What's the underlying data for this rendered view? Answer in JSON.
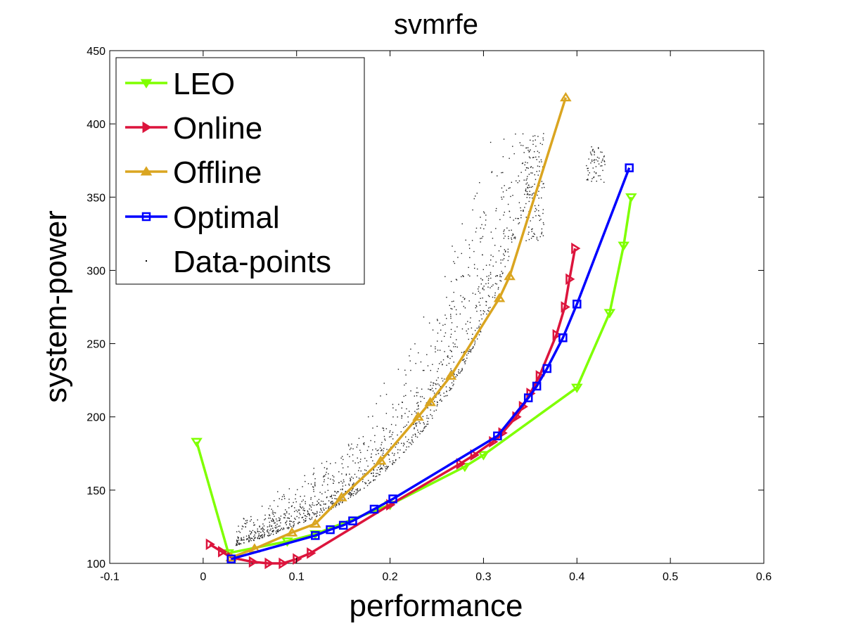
{
  "chart_data": {
    "type": "line",
    "title": "svmrfe",
    "xlabel": "performance",
    "ylabel": "system-power",
    "xlim": [
      -0.1,
      0.6
    ],
    "ylim": [
      100,
      450
    ],
    "xticks": [
      "-0.1",
      "0",
      "0.1",
      "0.2",
      "0.3",
      "0.4",
      "0.5",
      "0.6"
    ],
    "yticks": [
      "100",
      "150",
      "200",
      "250",
      "300",
      "350",
      "400",
      "450"
    ],
    "grid": false,
    "legend_position": "top-left",
    "series": [
      {
        "name": "LEO",
        "color": "#7fff00",
        "marker": "triangle-down",
        "points": [
          [
            -0.007,
            183
          ],
          [
            0.027,
            107
          ],
          [
            0.09,
            115
          ],
          [
            0.12,
            120
          ],
          [
            0.2,
            140
          ],
          [
            0.28,
            166
          ],
          [
            0.3,
            174
          ],
          [
            0.4,
            220
          ],
          [
            0.435,
            271
          ],
          [
            0.45,
            317
          ],
          [
            0.458,
            350
          ]
        ]
      },
      {
        "name": "Online",
        "color": "#dc143c",
        "marker": "triangle-right",
        "points": [
          [
            0.007,
            113
          ],
          [
            0.02,
            108
          ],
          [
            0.03,
            104
          ],
          [
            0.053,
            101
          ],
          [
            0.07,
            100
          ],
          [
            0.085,
            100
          ],
          [
            0.1,
            103
          ],
          [
            0.115,
            107
          ],
          [
            0.2,
            140
          ],
          [
            0.275,
            168
          ],
          [
            0.29,
            174
          ],
          [
            0.31,
            183
          ],
          [
            0.32,
            189
          ],
          [
            0.335,
            200
          ],
          [
            0.342,
            207
          ],
          [
            0.35,
            216
          ],
          [
            0.36,
            228
          ],
          [
            0.378,
            256
          ],
          [
            0.387,
            275
          ],
          [
            0.392,
            294
          ],
          [
            0.398,
            315
          ]
        ]
      },
      {
        "name": "Offline",
        "color": "#daa520",
        "marker": "triangle-up",
        "points": [
          [
            0.03,
            104
          ],
          [
            0.055,
            110
          ],
          [
            0.095,
            121
          ],
          [
            0.12,
            127
          ],
          [
            0.148,
            145
          ],
          [
            0.19,
            170
          ],
          [
            0.23,
            200
          ],
          [
            0.243,
            210
          ],
          [
            0.265,
            228
          ],
          [
            0.317,
            281
          ],
          [
            0.328,
            296
          ],
          [
            0.388,
            418
          ]
        ]
      },
      {
        "name": "Optimal",
        "color": "#0000ff",
        "marker": "square",
        "points": [
          [
            0.03,
            103
          ],
          [
            0.12,
            119
          ],
          [
            0.136,
            123
          ],
          [
            0.15,
            126
          ],
          [
            0.16,
            129
          ],
          [
            0.183,
            137
          ],
          [
            0.203,
            144
          ],
          [
            0.315,
            187
          ],
          [
            0.348,
            213
          ],
          [
            0.357,
            221
          ],
          [
            0.368,
            233
          ],
          [
            0.385,
            254
          ],
          [
            0.4,
            277
          ],
          [
            0.456,
            370
          ]
        ]
      },
      {
        "name": "Data-points",
        "color": "#000000",
        "marker": "dot"
      }
    ]
  }
}
